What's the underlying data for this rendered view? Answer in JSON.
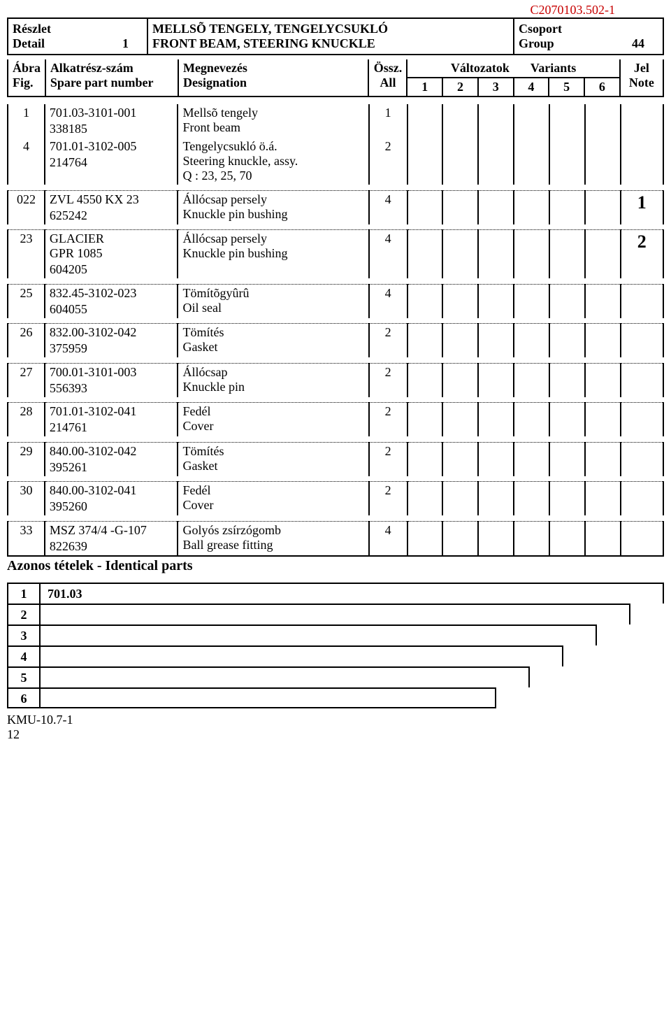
{
  "doc_id": "C2070103.502-1",
  "header": {
    "detail_hu": "Részlet",
    "detail_en": "Detail",
    "detail_num": "1",
    "title_hu": "MELLSÕ TENGELY, TENGELYCSUKLÓ",
    "title_en": "FRONT BEAM, STEERING KNUCKLE",
    "group_hu": "Csoport",
    "group_en": "Group",
    "group_num": "44"
  },
  "cols": {
    "fig_hu": "Ábra",
    "fig_en": "Fig.",
    "part_hu": "Alkatrész-szám",
    "part_en": "Spare part number",
    "desig_hu": "Megnevezés",
    "desig_en": "Designation",
    "all_hu": "Össz.",
    "all_en": "All",
    "variants_hu": "Változatok",
    "variants_en": "Variants",
    "v1": "1",
    "v2": "2",
    "v3": "3",
    "v4": "4",
    "v5": "5",
    "v6": "6",
    "note_hu": "Jel",
    "note_en": "Note"
  },
  "rows": [
    {
      "fig": "1",
      "part1": "701.03-3101-001",
      "part2": "338185",
      "d1": "Mellsõ tengely",
      "d2": "Front beam",
      "d3": "",
      "all": "1",
      "note": ""
    },
    {
      "fig": "4",
      "part1": "701.01-3102-005",
      "part2": "214764",
      "d1": "Tengelycsukló ö.á.",
      "d2": "Steering knuckle, assy.",
      "d3": "Q : 23, 25, 70",
      "all": "2",
      "note": ""
    },
    {
      "fig": "022",
      "part1": "ZVL 4550 KX 23",
      "part2": "625242",
      "d1": "Állócsap persely",
      "d2": "Knuckle pin bushing",
      "d3": "",
      "all": "4",
      "note": "1",
      "big": true
    },
    {
      "fig": "23",
      "part1": "GLACIER",
      "part1b": "GPR 1085",
      "part2": "604205",
      "d1": "Állócsap persely",
      "d2": "Knuckle pin bushing",
      "d3": "",
      "all": "4",
      "note": "2",
      "big": true
    },
    {
      "fig": "25",
      "part1": "832.45-3102-023",
      "part2": "604055",
      "d1": "Tömítõgyûrû",
      "d2": "Oil seal",
      "d3": "",
      "all": "4",
      "note": ""
    },
    {
      "fig": "26",
      "part1": "832.00-3102-042",
      "part2": "375959",
      "d1": "Tömítés",
      "d2": "Gasket",
      "d3": "",
      "all": "2",
      "note": ""
    },
    {
      "fig": "27",
      "part1": "700.01-3101-003",
      "part2": "556393",
      "d1": "Állócsap",
      "d2": "Knuckle pin",
      "d3": "",
      "all": "2",
      "note": ""
    },
    {
      "fig": "28",
      "part1": "701.01-3102-041",
      "part2": "214761",
      "d1": "Fedél",
      "d2": "Cover",
      "d3": "",
      "all": "2",
      "note": ""
    },
    {
      "fig": "29",
      "part1": "840.00-3102-042",
      "part2": "395261",
      "d1": "Tömítés",
      "d2": "Gasket",
      "d3": "",
      "all": "2",
      "note": ""
    },
    {
      "fig": "30",
      "part1": "840.00-3102-041",
      "part2": "395260",
      "d1": "Fedél",
      "d2": "Cover",
      "d3": "",
      "all": "2",
      "note": ""
    },
    {
      "fig": "33",
      "part1": "MSZ 374/4 -G-107",
      "part2": "822639",
      "d1": "Golyós zsírzógomb",
      "d2": "Ball grease fitting",
      "d3": "",
      "all": "4",
      "note": ""
    }
  ],
  "identical_label": "Azonos tételek - Identical parts",
  "stairs": [
    {
      "n": "1",
      "txt": "701.03",
      "indent": 0
    },
    {
      "n": "2",
      "txt": "",
      "indent": 48
    },
    {
      "n": "3",
      "txt": "",
      "indent": 96
    },
    {
      "n": "4",
      "txt": "",
      "indent": 144
    },
    {
      "n": "5",
      "txt": "",
      "indent": 192
    },
    {
      "n": "6",
      "txt": "",
      "indent": 240
    }
  ],
  "footer": {
    "code1": "KMU-10.7-1",
    "code2": "12"
  },
  "colors": {
    "red": "#c70000"
  }
}
